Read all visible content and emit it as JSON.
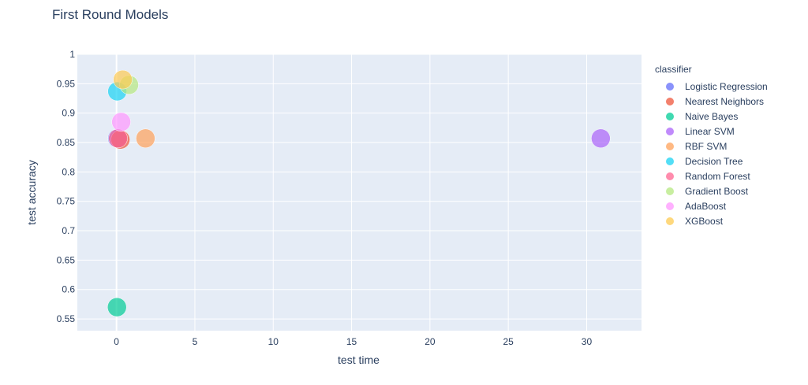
{
  "chart_data": {
    "type": "scatter",
    "title": "First Round Models",
    "xlabel": "test time",
    "ylabel": "test accuracy",
    "xlim": [
      -2.5,
      33.5
    ],
    "ylim": [
      0.53,
      1.0
    ],
    "xticks": [
      0,
      5,
      10,
      15,
      20,
      25,
      30
    ],
    "yticks": [
      0.55,
      0.6,
      0.65,
      0.7,
      0.75,
      0.8,
      0.85,
      0.9,
      0.95,
      1
    ],
    "ytick_labels": [
      "0.55",
      "0.6",
      "0.65",
      "0.7",
      "0.75",
      "0.8",
      "0.85",
      "0.9",
      "0.95",
      "1"
    ],
    "xtick_labels": [
      "0",
      "5",
      "10",
      "15",
      "20",
      "25",
      "30"
    ],
    "grid": true,
    "legend_title": "classifier",
    "legend_position": "right",
    "series": [
      {
        "name": "Logistic Regression",
        "color": "#636efa",
        "points": [
          {
            "x": 0.05,
            "y": 0.857
          }
        ]
      },
      {
        "name": "Nearest Neighbors",
        "color": "#ef553b",
        "points": [
          {
            "x": 0.25,
            "y": 0.855
          }
        ]
      },
      {
        "name": "Naive Bayes",
        "color": "#00cc96",
        "points": [
          {
            "x": 0.03,
            "y": 0.57
          }
        ]
      },
      {
        "name": "Linear SVM",
        "color": "#ab63fa",
        "points": [
          {
            "x": 30.9,
            "y": 0.857
          }
        ]
      },
      {
        "name": "RBF SVM",
        "color": "#ffa15a",
        "points": [
          {
            "x": 1.85,
            "y": 0.857
          }
        ]
      },
      {
        "name": "Decision Tree",
        "color": "#19d3f3",
        "points": [
          {
            "x": 0.05,
            "y": 0.937
          }
        ]
      },
      {
        "name": "Random Forest",
        "color": "#ff6692",
        "points": [
          {
            "x": 0.1,
            "y": 0.857
          }
        ]
      },
      {
        "name": "Gradient Boost",
        "color": "#b6e880",
        "points": [
          {
            "x": 0.8,
            "y": 0.948
          }
        ]
      },
      {
        "name": "AdaBoost",
        "color": "#ff97ff",
        "points": [
          {
            "x": 0.3,
            "y": 0.885
          }
        ]
      },
      {
        "name": "XGBoost",
        "color": "#fecb52",
        "points": [
          {
            "x": 0.4,
            "y": 0.957
          }
        ]
      }
    ]
  }
}
